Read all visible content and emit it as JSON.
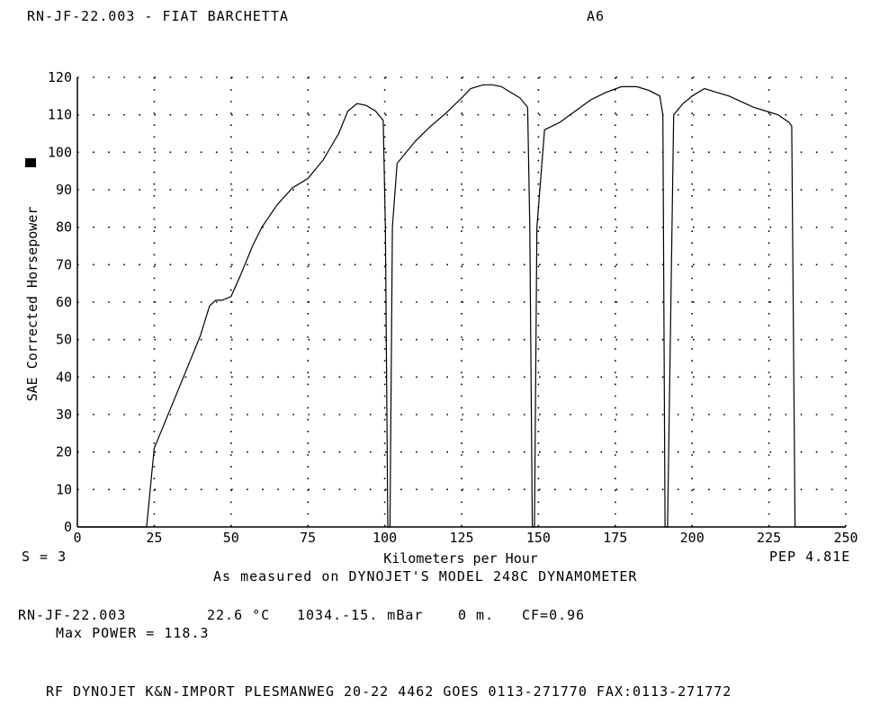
{
  "header": {
    "run_title": "RN-JF-22.003 - FIAT BARCHETTA",
    "code": "A6"
  },
  "footer": {
    "left_note": "S = 3",
    "right_note": "PEP 4.81E",
    "measured_note": "As measured on DYNOJET'S MODEL 248C DYNAMOMETER",
    "run_id": "RN-JF-22.003",
    "temperature": "22.6 °C",
    "pressure": "1034.-15. mBar",
    "altitude": "0 m.",
    "cf": "CF=0.96",
    "max_power": "Max POWER = 118.3",
    "company_line": "RF DYNOJET K&N-IMPORT PLESMANWEG 20-22 4462 GOES 0113-271770 FAX:0113-271772"
  },
  "chart_data": {
    "type": "line",
    "title": "RN-JF-22.003 - FIAT BARCHETTA",
    "xlabel": "Kilometers per Hour",
    "ylabel": "SAE Corrected Horsepower",
    "xlim": [
      0,
      250
    ],
    "ylim": [
      0,
      120
    ],
    "x_ticks": [
      0,
      25,
      50,
      75,
      100,
      125,
      150,
      175,
      200,
      225,
      250
    ],
    "y_ticks": [
      0,
      10,
      20,
      30,
      40,
      50,
      60,
      70,
      80,
      90,
      100,
      110,
      120
    ],
    "grid": "dotted",
    "series": [
      {
        "x": [
          0,
          22.5,
          25,
          26,
          30,
          35,
          40,
          43,
          45,
          47,
          50,
          53,
          57,
          60,
          65,
          70,
          75,
          80,
          85,
          88,
          91,
          94,
          97,
          99.5,
          100.2,
          101,
          101.7,
          102.5,
          104,
          107,
          110,
          115,
          120,
          125,
          128,
          130,
          132,
          135,
          138,
          141,
          144,
          146.5,
          147.2,
          148,
          148.7,
          149.5,
          152,
          157,
          162,
          167,
          172,
          177,
          182,
          186,
          189.5,
          190.5,
          191.2,
          192,
          194,
          197,
          200,
          204,
          208,
          212,
          216,
          220,
          224,
          228,
          231.5,
          232.4,
          233.5,
          250
        ],
        "y": [
          0,
          0,
          21,
          23,
          31,
          41,
          51,
          59,
          60.5,
          60.5,
          61.5,
          67,
          75,
          80,
          86,
          90.5,
          93,
          98,
          105,
          111,
          113,
          112.5,
          111,
          108.5,
          80,
          0,
          0,
          80,
          97,
          100,
          103,
          107,
          110.5,
          114.5,
          117,
          117.5,
          118,
          118,
          117.5,
          116,
          114.5,
          112,
          80,
          0,
          0,
          80,
          106,
          108,
          111,
          114,
          116,
          117.5,
          117.5,
          116.5,
          115,
          110,
          0,
          0,
          110,
          113,
          115,
          117,
          116,
          115,
          113.5,
          112,
          111,
          110,
          108,
          107,
          0,
          0
        ]
      }
    ]
  }
}
